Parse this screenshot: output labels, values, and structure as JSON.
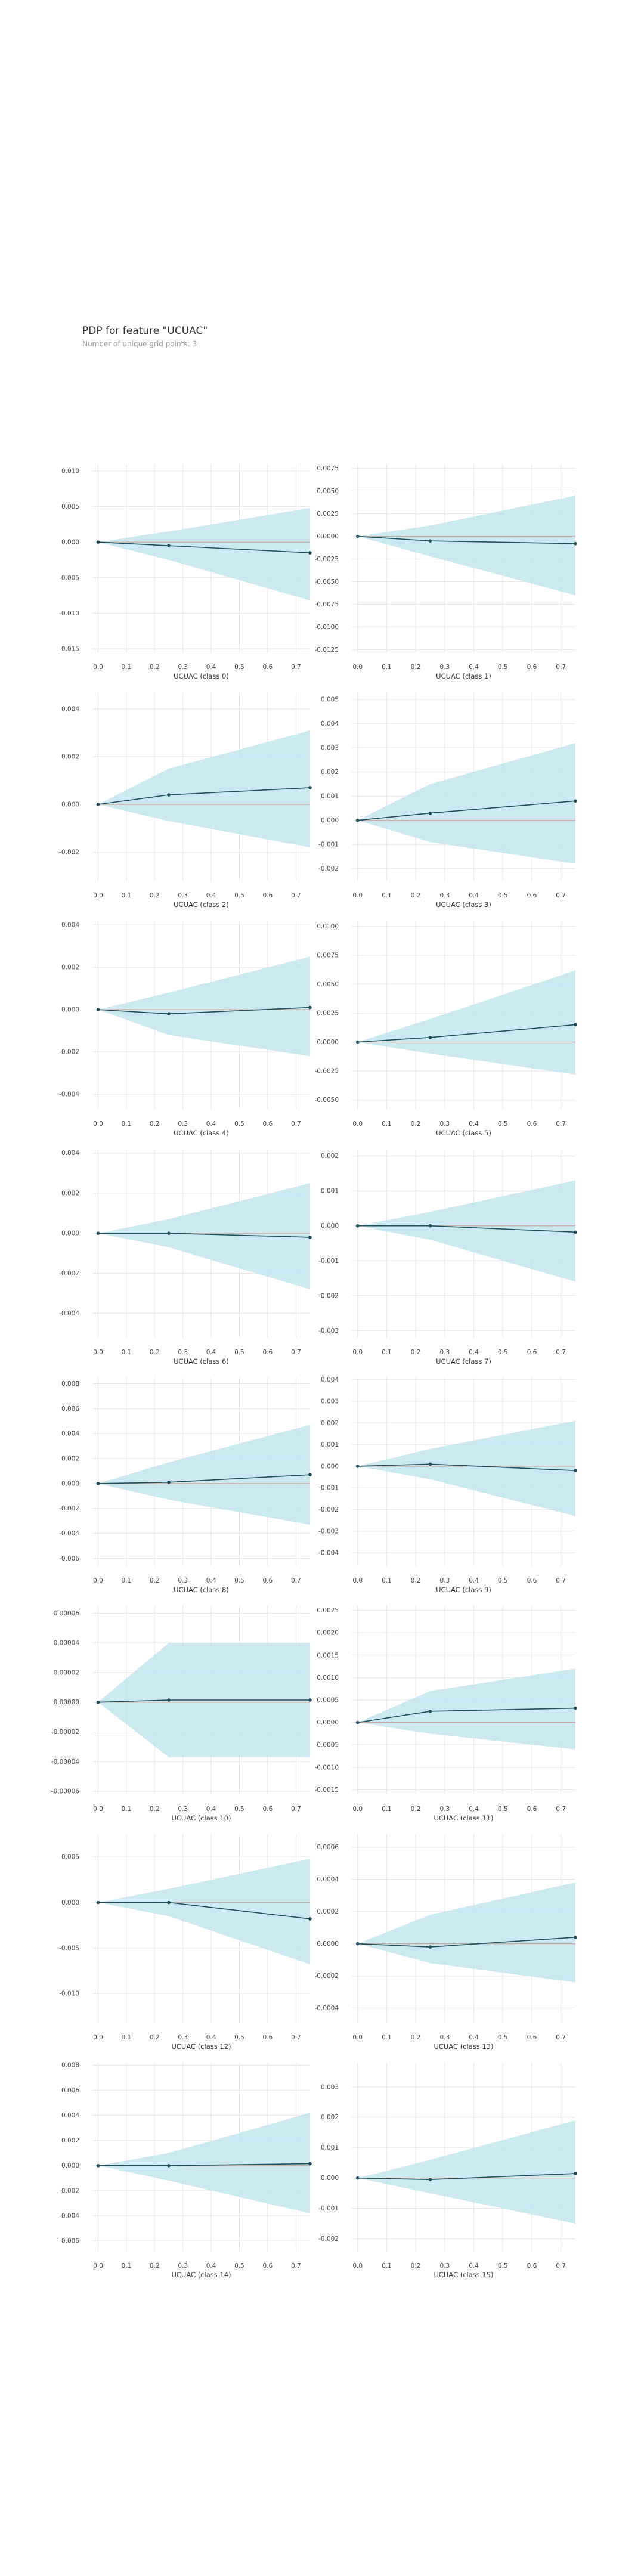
{
  "header": {
    "title": "PDP for feature \"UCUAC\"",
    "subtitle": "Number of unique grid points: 3"
  },
  "colors": {
    "line": "#1f4e5a",
    "band": "#bfe3ef",
    "zero_line": "#c9a89d",
    "grid": "#e6e6e6",
    "tick": "#444444"
  },
  "chart_data": [
    {
      "type": "line",
      "xlabel": "UCUAC (class 0)",
      "x": [
        0.0,
        0.25,
        0.75
      ],
      "y": [
        0.0,
        -0.0005,
        -0.0015
      ],
      "upper": [
        0.0,
        0.0015,
        0.0048
      ],
      "lower": [
        0.0,
        -0.0025,
        -0.0082
      ],
      "ylim": [
        -0.0155,
        0.011
      ],
      "yticks": [
        0.01,
        0.005,
        0.0,
        -0.005,
        -0.01,
        -0.015
      ],
      "ytick_labels": [
        "0.010",
        "0.005",
        "0.000",
        "-0.005",
        "-0.010",
        "-0.015"
      ],
      "xticks": [
        0.0,
        0.1,
        0.2,
        0.3,
        0.4,
        0.5,
        0.6,
        0.7
      ],
      "xtick_labels": [
        "0.0",
        "0.1",
        "0.2",
        "0.3",
        "0.4",
        "0.5",
        "0.6",
        "0.7"
      ],
      "xlim": [
        -0.02,
        0.75
      ]
    },
    {
      "type": "line",
      "xlabel": "UCUAC (class 1)",
      "x": [
        0.0,
        0.25,
        0.75
      ],
      "y": [
        0.0,
        -0.0005,
        -0.0008
      ],
      "upper": [
        0.0,
        0.0012,
        0.0045
      ],
      "lower": [
        0.0,
        -0.0022,
        -0.0065
      ],
      "ylim": [
        -0.0128,
        0.008
      ],
      "yticks": [
        0.0075,
        0.005,
        0.0025,
        0.0,
        -0.0025,
        -0.005,
        -0.0075,
        -0.01,
        -0.0125
      ],
      "ytick_labels": [
        "0.0075",
        "0.0050",
        "0.0025",
        "0.0000",
        "-0.0025",
        "-0.0050",
        "-0.0075",
        "-0.0100",
        "-0.0125"
      ],
      "xticks": [
        0.0,
        0.1,
        0.2,
        0.3,
        0.4,
        0.5,
        0.6,
        0.7
      ],
      "xtick_labels": [
        "0.0",
        "0.1",
        "0.2",
        "0.3",
        "0.4",
        "0.5",
        "0.6",
        "0.7"
      ],
      "xlim": [
        -0.02,
        0.75
      ]
    },
    {
      "type": "line",
      "xlabel": "UCUAC (class 2)",
      "x": [
        0.0,
        0.25,
        0.75
      ],
      "y": [
        0.0,
        0.0004,
        0.0007
      ],
      "upper": [
        0.0,
        0.0015,
        0.0031
      ],
      "lower": [
        0.0,
        -0.0007,
        -0.0018
      ],
      "ylim": [
        -0.0032,
        0.0047
      ],
      "yticks": [
        0.004,
        0.002,
        0.0,
        -0.002
      ],
      "ytick_labels": [
        "0.004",
        "0.002",
        "0.000",
        "-0.002"
      ],
      "xticks": [
        0.0,
        0.1,
        0.2,
        0.3,
        0.4,
        0.5,
        0.6,
        0.7
      ],
      "xtick_labels": [
        "0.0",
        "0.1",
        "0.2",
        "0.3",
        "0.4",
        "0.5",
        "0.6",
        "0.7"
      ],
      "xlim": [
        -0.02,
        0.75
      ]
    },
    {
      "type": "line",
      "xlabel": "UCUAC (class 3)",
      "x": [
        0.0,
        0.25,
        0.75
      ],
      "y": [
        0.0,
        0.0003,
        0.0008
      ],
      "upper": [
        0.0,
        0.0015,
        0.0032
      ],
      "lower": [
        0.0,
        -0.0009,
        -0.0018
      ],
      "ylim": [
        -0.0025,
        0.0053
      ],
      "yticks": [
        0.005,
        0.004,
        0.003,
        0.002,
        0.001,
        0.0,
        -0.001,
        -0.002
      ],
      "ytick_labels": [
        "0.005",
        "0.004",
        "0.003",
        "0.002",
        "0.001",
        "0.000",
        "-0.001",
        "-0.002"
      ],
      "xticks": [
        0.0,
        0.1,
        0.2,
        0.3,
        0.4,
        0.5,
        0.6,
        0.7
      ],
      "xtick_labels": [
        "0.0",
        "0.1",
        "0.2",
        "0.3",
        "0.4",
        "0.5",
        "0.6",
        "0.7"
      ],
      "xlim": [
        -0.02,
        0.75
      ]
    },
    {
      "type": "line",
      "xlabel": "UCUAC (class 4)",
      "x": [
        0.0,
        0.25,
        0.75
      ],
      "y": [
        0.0,
        -0.0002,
        0.0001
      ],
      "upper": [
        0.0,
        0.0008,
        0.0025
      ],
      "lower": [
        0.0,
        -0.0012,
        -0.0022
      ],
      "ylim": [
        -0.0047,
        0.0042
      ],
      "yticks": [
        0.004,
        0.002,
        0.0,
        -0.002,
        -0.004
      ],
      "ytick_labels": [
        "0.004",
        "0.002",
        "0.000",
        "-0.002",
        "-0.004"
      ],
      "xticks": [
        0.0,
        0.1,
        0.2,
        0.3,
        0.4,
        0.5,
        0.6,
        0.7
      ],
      "xtick_labels": [
        "0.0",
        "0.1",
        "0.2",
        "0.3",
        "0.4",
        "0.5",
        "0.6",
        "0.7"
      ],
      "xlim": [
        -0.02,
        0.75
      ]
    },
    {
      "type": "line",
      "xlabel": "UCUAC (class 5)",
      "x": [
        0.0,
        0.25,
        0.75
      ],
      "y": [
        0.0,
        0.0004,
        0.0015
      ],
      "upper": [
        0.0,
        0.002,
        0.0062
      ],
      "lower": [
        0.0,
        -0.001,
        -0.0028
      ],
      "ylim": [
        -0.0058,
        0.0105
      ],
      "yticks": [
        0.01,
        0.0075,
        0.005,
        0.0025,
        0.0,
        -0.0025,
        -0.005
      ],
      "ytick_labels": [
        "0.0100",
        "0.0075",
        "0.0050",
        "0.0025",
        "0.0000",
        "-0.0025",
        "-0.0050"
      ],
      "xticks": [
        0.0,
        0.1,
        0.2,
        0.3,
        0.4,
        0.5,
        0.6,
        0.7
      ],
      "xtick_labels": [
        "0.0",
        "0.1",
        "0.2",
        "0.3",
        "0.4",
        "0.5",
        "0.6",
        "0.7"
      ],
      "xlim": [
        -0.02,
        0.75
      ]
    },
    {
      "type": "line",
      "xlabel": "UCUAC (class 6)",
      "x": [
        0.0,
        0.25,
        0.75
      ],
      "y": [
        0.0,
        0.0,
        -0.0002
      ],
      "upper": [
        0.0,
        0.0007,
        0.0025
      ],
      "lower": [
        0.0,
        -0.0007,
        -0.0028
      ],
      "ylim": [
        -0.0052,
        0.0042
      ],
      "yticks": [
        0.004,
        0.002,
        0.0,
        -0.002,
        -0.004
      ],
      "ytick_labels": [
        "0.004",
        "0.002",
        "0.000",
        "-0.002",
        "-0.004"
      ],
      "xticks": [
        0.0,
        0.1,
        0.2,
        0.3,
        0.4,
        0.5,
        0.6,
        0.7
      ],
      "xtick_labels": [
        "0.0",
        "0.1",
        "0.2",
        "0.3",
        "0.4",
        "0.5",
        "0.6",
        "0.7"
      ],
      "xlim": [
        -0.02,
        0.75
      ]
    },
    {
      "type": "line",
      "xlabel": "UCUAC (class 7)",
      "x": [
        0.0,
        0.25,
        0.75
      ],
      "y": [
        0.0,
        0.0,
        -0.00018
      ],
      "upper": [
        0.0,
        0.0004,
        0.0013
      ],
      "lower": [
        0.0,
        -0.0004,
        -0.0016
      ],
      "ylim": [
        -0.0032,
        0.0022
      ],
      "yticks": [
        0.002,
        0.001,
        0.0,
        -0.001,
        -0.002,
        -0.003
      ],
      "ytick_labels": [
        "0.002",
        "0.001",
        "0.000",
        "-0.001",
        "-0.002",
        "-0.003"
      ],
      "xticks": [
        0.0,
        0.1,
        0.2,
        0.3,
        0.4,
        0.5,
        0.6,
        0.7
      ],
      "xtick_labels": [
        "0.0",
        "0.1",
        "0.2",
        "0.3",
        "0.4",
        "0.5",
        "0.6",
        "0.7"
      ],
      "xlim": [
        -0.02,
        0.75
      ]
    },
    {
      "type": "line",
      "xlabel": "UCUAC (class 8)",
      "x": [
        0.0,
        0.25,
        0.75
      ],
      "y": [
        0.0,
        0.0001,
        0.0007
      ],
      "upper": [
        0.0,
        0.0017,
        0.0047
      ],
      "lower": [
        0.0,
        -0.0013,
        -0.0033
      ],
      "ylim": [
        -0.0066,
        0.0085
      ],
      "yticks": [
        0.008,
        0.006,
        0.004,
        0.002,
        0.0,
        -0.002,
        -0.004,
        -0.006
      ],
      "ytick_labels": [
        "0.008",
        "0.006",
        "0.004",
        "0.002",
        "0.000",
        "-0.002",
        "-0.004",
        "-0.006"
      ],
      "xticks": [
        0.0,
        0.1,
        0.2,
        0.3,
        0.4,
        0.5,
        0.6,
        0.7
      ],
      "xtick_labels": [
        "0.0",
        "0.1",
        "0.2",
        "0.3",
        "0.4",
        "0.5",
        "0.6",
        "0.7"
      ],
      "xlim": [
        -0.02,
        0.75
      ]
    },
    {
      "type": "line",
      "xlabel": "UCUAC (class 9)",
      "x": [
        0.0,
        0.25,
        0.75
      ],
      "y": [
        0.0,
        0.0001,
        -0.0002
      ],
      "upper": [
        0.0,
        0.0008,
        0.0021
      ],
      "lower": [
        0.0,
        -0.0006,
        -0.0023
      ],
      "ylim": [
        -0.0046,
        0.0041
      ],
      "yticks": [
        0.004,
        0.003,
        0.002,
        0.001,
        0.0,
        -0.001,
        -0.002,
        -0.003,
        -0.004
      ],
      "ytick_labels": [
        "0.004",
        "0.003",
        "0.002",
        "0.001",
        "0.000",
        "-0.001",
        "-0.002",
        "-0.003",
        "-0.004"
      ],
      "xticks": [
        0.0,
        0.1,
        0.2,
        0.3,
        0.4,
        0.5,
        0.6,
        0.7
      ],
      "xtick_labels": [
        "0.0",
        "0.1",
        "0.2",
        "0.3",
        "0.4",
        "0.5",
        "0.6",
        "0.7"
      ],
      "xlim": [
        -0.02,
        0.75
      ]
    },
    {
      "type": "line",
      "xlabel": "UCUAC (class 10)",
      "x": [
        0.0,
        0.25,
        0.75
      ],
      "y": [
        0.0,
        1.5e-06,
        1.5e-06
      ],
      "upper": [
        0.0,
        4e-05,
        4e-05
      ],
      "lower": [
        0.0,
        -3.7e-05,
        -3.7e-05
      ],
      "ylim": [
        -6.2e-05,
        6.5e-05
      ],
      "yticks": [
        6e-05,
        4e-05,
        2e-05,
        0.0,
        -2e-05,
        -4e-05,
        -6e-05
      ],
      "ytick_labels": [
        "0.00006",
        "0.00004",
        "0.00002",
        "0.00000",
        "-0.00002",
        "-0.00004",
        "-0.00006"
      ],
      "xticks": [
        0.0,
        0.1,
        0.2,
        0.3,
        0.4,
        0.5,
        0.6,
        0.7
      ],
      "xtick_labels": [
        "0.0",
        "0.1",
        "0.2",
        "0.3",
        "0.4",
        "0.5",
        "0.6",
        "0.7"
      ],
      "xlim": [
        -0.02,
        0.75
      ]
    },
    {
      "type": "line",
      "xlabel": "UCUAC (class 11)",
      "x": [
        0.0,
        0.25,
        0.75
      ],
      "y": [
        0.0,
        0.00025,
        0.00032
      ],
      "upper": [
        0.0,
        0.0007,
        0.0012
      ],
      "lower": [
        0.0,
        -0.00025,
        -0.0006
      ],
      "ylim": [
        -0.0016,
        0.0026
      ],
      "yticks": [
        0.0025,
        0.002,
        0.0015,
        0.001,
        0.0005,
        0.0,
        -0.0005,
        -0.001,
        -0.0015
      ],
      "ytick_labels": [
        "0.0025",
        "0.0020",
        "0.0015",
        "0.0010",
        "0.0005",
        "0.0000",
        "-0.0005",
        "-0.0010",
        "-0.0015"
      ],
      "xticks": [
        0.0,
        0.1,
        0.2,
        0.3,
        0.4,
        0.5,
        0.6,
        0.7
      ],
      "xtick_labels": [
        "0.0",
        "0.1",
        "0.2",
        "0.3",
        "0.4",
        "0.5",
        "0.6",
        "0.7"
      ],
      "xlim": [
        -0.02,
        0.75
      ]
    },
    {
      "type": "line",
      "xlabel": "UCUAC (class 12)",
      "x": [
        0.0,
        0.25,
        0.75
      ],
      "y": [
        0.0,
        0.0,
        -0.0018
      ],
      "upper": [
        0.0,
        0.0015,
        0.0048
      ],
      "lower": [
        0.0,
        -0.0015,
        -0.0068
      ],
      "ylim": [
        -0.0132,
        0.0075
      ],
      "yticks": [
        0.005,
        0.0,
        -0.005,
        -0.01
      ],
      "ytick_labels": [
        "0.005",
        "0.000",
        "-0.005",
        "-0.010"
      ],
      "xticks": [
        0.0,
        0.1,
        0.2,
        0.3,
        0.4,
        0.5,
        0.6,
        0.7
      ],
      "xtick_labels": [
        "0.0",
        "0.1",
        "0.2",
        "0.3",
        "0.4",
        "0.5",
        "0.6",
        "0.7"
      ],
      "xlim": [
        -0.02,
        0.75
      ]
    },
    {
      "type": "line",
      "xlabel": "UCUAC (class 13)",
      "x": [
        0.0,
        0.25,
        0.75
      ],
      "y": [
        0.0,
        -2e-05,
        4e-05
      ],
      "upper": [
        0.0,
        0.00018,
        0.00038
      ],
      "lower": [
        0.0,
        -0.00012,
        -0.00024
      ],
      "ylim": [
        -0.00049,
        0.00068
      ],
      "yticks": [
        0.0006,
        0.0004,
        0.0002,
        0.0,
        -0.0002,
        -0.0004
      ],
      "ytick_labels": [
        "0.0006",
        "0.0004",
        "0.0002",
        "0.0000",
        "-0.0002",
        "-0.0004"
      ],
      "xticks": [
        0.0,
        0.1,
        0.2,
        0.3,
        0.4,
        0.5,
        0.6,
        0.7
      ],
      "xtick_labels": [
        "0.0",
        "0.1",
        "0.2",
        "0.3",
        "0.4",
        "0.5",
        "0.6",
        "0.7"
      ],
      "xlim": [
        -0.02,
        0.75
      ]
    },
    {
      "type": "line",
      "xlabel": "UCUAC (class 14)",
      "x": [
        0.0,
        0.25,
        0.75
      ],
      "y": [
        0.0,
        0.0,
        0.00015
      ],
      "upper": [
        0.0,
        0.001,
        0.0042
      ],
      "lower": [
        0.0,
        -0.0012,
        -0.0038
      ],
      "ylim": [
        -0.0068,
        0.0082
      ],
      "yticks": [
        0.008,
        0.006,
        0.004,
        0.002,
        0.0,
        -0.002,
        -0.004,
        -0.006
      ],
      "ytick_labels": [
        "0.008",
        "0.006",
        "0.004",
        "0.002",
        "0.000",
        "-0.002",
        "-0.004",
        "-0.006"
      ],
      "xticks": [
        0.0,
        0.1,
        0.2,
        0.3,
        0.4,
        0.5,
        0.6,
        0.7
      ],
      "xtick_labels": [
        "0.0",
        "0.1",
        "0.2",
        "0.3",
        "0.4",
        "0.5",
        "0.6",
        "0.7"
      ],
      "xlim": [
        -0.02,
        0.75
      ]
    },
    {
      "type": "line",
      "xlabel": "UCUAC (class 15)",
      "x": [
        0.0,
        0.25,
        0.75
      ],
      "y": [
        0.0,
        -5e-05,
        0.00015
      ],
      "upper": [
        0.0,
        0.0006,
        0.0019
      ],
      "lower": [
        0.0,
        -0.0005,
        -0.0015
      ],
      "ylim": [
        -0.0024,
        0.0038
      ],
      "yticks": [
        0.003,
        0.002,
        0.001,
        0.0,
        -0.001,
        -0.002
      ],
      "ytick_labels": [
        "0.003",
        "0.002",
        "0.001",
        "0.000",
        "-0.001",
        "-0.002"
      ],
      "xticks": [
        0.0,
        0.1,
        0.2,
        0.3,
        0.4,
        0.5,
        0.6,
        0.7
      ],
      "xtick_labels": [
        "0.0",
        "0.1",
        "0.2",
        "0.3",
        "0.4",
        "0.5",
        "0.6",
        "0.7"
      ],
      "xlim": [
        -0.02,
        0.75
      ]
    }
  ]
}
